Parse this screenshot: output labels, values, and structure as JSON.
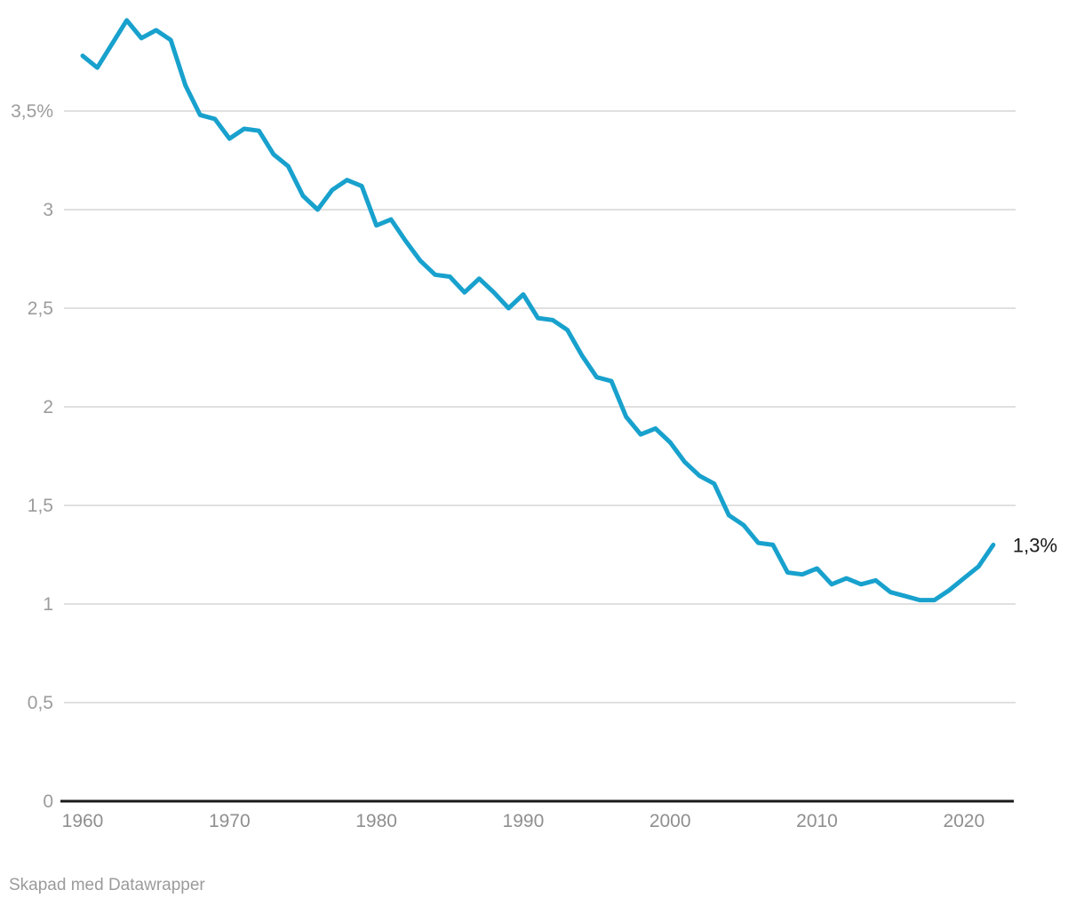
{
  "chart_data": {
    "type": "line",
    "title": "",
    "xlabel": "",
    "ylabel": "",
    "x": [
      1960,
      1961,
      1962,
      1963,
      1964,
      1965,
      1966,
      1967,
      1968,
      1969,
      1970,
      1971,
      1972,
      1973,
      1974,
      1975,
      1976,
      1977,
      1978,
      1979,
      1980,
      1981,
      1982,
      1983,
      1984,
      1985,
      1986,
      1987,
      1988,
      1989,
      1990,
      1991,
      1992,
      1993,
      1994,
      1995,
      1996,
      1997,
      1998,
      1999,
      2000,
      2001,
      2002,
      2003,
      2004,
      2005,
      2006,
      2007,
      2008,
      2009,
      2010,
      2011,
      2012,
      2013,
      2014,
      2015,
      2016,
      2017,
      2018,
      2019,
      2020,
      2021,
      2022
    ],
    "values": [
      3.78,
      3.72,
      3.84,
      3.96,
      3.87,
      3.91,
      3.86,
      3.63,
      3.48,
      3.46,
      3.36,
      3.41,
      3.4,
      3.28,
      3.22,
      3.07,
      3.0,
      3.1,
      3.15,
      3.12,
      2.92,
      2.95,
      2.84,
      2.74,
      2.67,
      2.66,
      2.58,
      2.65,
      2.58,
      2.5,
      2.57,
      2.45,
      2.44,
      2.39,
      2.26,
      2.15,
      2.13,
      1.95,
      1.86,
      1.89,
      1.82,
      1.72,
      1.65,
      1.61,
      1.45,
      1.4,
      1.31,
      1.3,
      1.16,
      1.15,
      1.18,
      1.1,
      1.13,
      1.1,
      1.12,
      1.06,
      1.04,
      1.02,
      1.02,
      1.07,
      1.13,
      1.19,
      1.3
    ],
    "end_label": "1,3%",
    "line_color": "#18a1cd",
    "y_ticks": [
      {
        "value": 3.5,
        "label": "3,5%"
      },
      {
        "value": 3.0,
        "label": "3"
      },
      {
        "value": 2.5,
        "label": "2,5"
      },
      {
        "value": 2.0,
        "label": "2"
      },
      {
        "value": 1.5,
        "label": "1,5"
      },
      {
        "value": 1.0,
        "label": "1"
      },
      {
        "value": 0.5,
        "label": "0,5"
      },
      {
        "value": 0.0,
        "label": "0"
      }
    ],
    "x_ticks": [
      {
        "value": 1960,
        "label": "1960"
      },
      {
        "value": 1970,
        "label": "1970"
      },
      {
        "value": 1980,
        "label": "1980"
      },
      {
        "value": 1990,
        "label": "1990"
      },
      {
        "value": 2000,
        "label": "2000"
      },
      {
        "value": 2010,
        "label": "2010"
      },
      {
        "value": 2020,
        "label": "2020"
      }
    ],
    "ylim": [
      0,
      4.06
    ],
    "xlim": [
      1958.7,
      2023.5
    ],
    "grid": true,
    "legend": "none"
  },
  "footer": {
    "credit": "Skapad med Datawrapper"
  }
}
